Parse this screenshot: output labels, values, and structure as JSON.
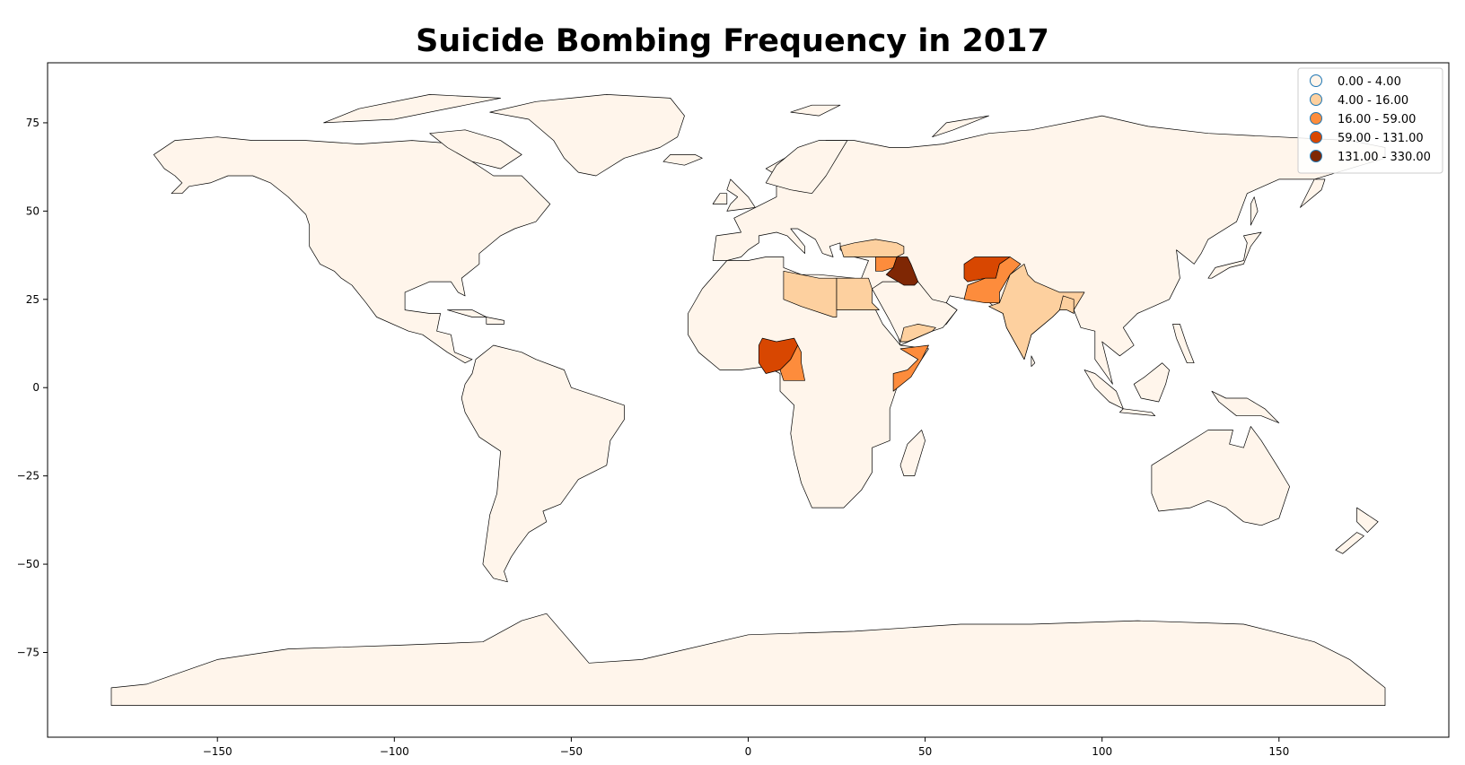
{
  "chart_data": {
    "type": "choropleth",
    "title": "Suicide Bombing Frequency in 2017",
    "xlabel": "",
    "ylabel": "",
    "xlim": [
      -198,
      198
    ],
    "ylim": [
      -99,
      92
    ],
    "x_ticks": [
      -150,
      -100,
      -50,
      0,
      50,
      100,
      150
    ],
    "y_ticks": [
      -75,
      -50,
      -25,
      0,
      25,
      50,
      75
    ],
    "x_tick_labels": [
      "−150",
      "−100",
      "−50",
      "0",
      "50",
      "100",
      "150"
    ],
    "y_tick_labels": [
      "−75",
      "−50",
      "−25",
      "0",
      "25",
      "50",
      "75"
    ],
    "legend_position": "top-right",
    "legend": [
      {
        "label": "0.00 - 4.00",
        "color": "#fff5eb",
        "edge": "#1f77b4"
      },
      {
        "label": "4.00 - 16.00",
        "color": "#fdd09f",
        "edge": "#1f77b4"
      },
      {
        "label": "16.00 - 59.00",
        "color": "#fd8c3c",
        "edge": "#1f77b4"
      },
      {
        "label": "59.00 - 131.00",
        "color": "#d84701",
        "edge": "#1f77b4"
      },
      {
        "label": "131.00 - 330.00",
        "color": "#7f2704",
        "edge": "#1f77b4"
      }
    ],
    "highlighted_countries": [
      {
        "name": "Iraq",
        "bin": "131.00 - 330.00"
      },
      {
        "name": "Afghanistan",
        "bin": "59.00 - 131.00"
      },
      {
        "name": "Nigeria",
        "bin": "59.00 - 131.00"
      },
      {
        "name": "Pakistan",
        "bin": "16.00 - 59.00"
      },
      {
        "name": "Somalia",
        "bin": "16.00 - 59.00"
      },
      {
        "name": "Cameroon",
        "bin": "16.00 - 59.00"
      },
      {
        "name": "Syria",
        "bin": "16.00 - 59.00"
      },
      {
        "name": "India",
        "bin": "4.00 - 16.00"
      },
      {
        "name": "Libya",
        "bin": "4.00 - 16.00"
      },
      {
        "name": "Egypt",
        "bin": "4.00 - 16.00"
      },
      {
        "name": "Yemen",
        "bin": "4.00 - 16.00"
      },
      {
        "name": "Turkey",
        "bin": "4.00 - 16.00"
      },
      {
        "name": "Bangladesh",
        "bin": "4.00 - 16.00"
      }
    ]
  }
}
